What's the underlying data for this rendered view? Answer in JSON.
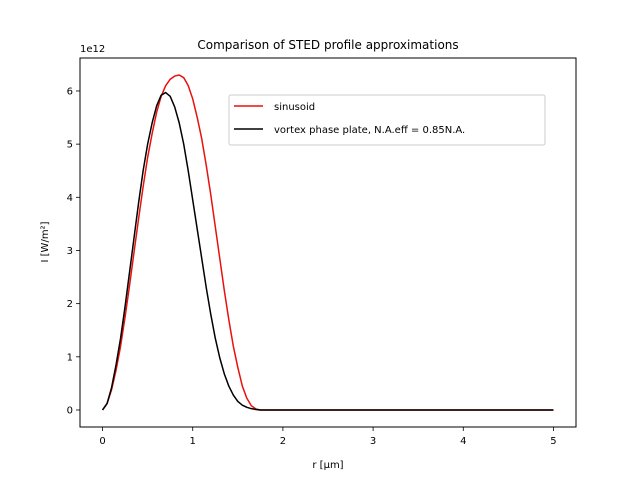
{
  "chart_data": {
    "type": "line",
    "title": "Comparison of STED profile approximations",
    "xlabel": "r [μm]",
    "ylabel": "I [W/m²]",
    "y_offset_text": "1e12",
    "xlim": [
      -0.25,
      5.25
    ],
    "ylim": [
      -0.32,
      6.62
    ],
    "x_ticks": [
      0,
      1,
      2,
      3,
      4,
      5
    ],
    "y_ticks": [
      0,
      1,
      2,
      3,
      4,
      5,
      6
    ],
    "legend_position": "upper-right",
    "series": [
      {
        "name": "sinusoid",
        "color": "#e8110c",
        "x": [
          0,
          0.05,
          0.1,
          0.15,
          0.2,
          0.25,
          0.3,
          0.35,
          0.4,
          0.45,
          0.5,
          0.55,
          0.6,
          0.65,
          0.7,
          0.75,
          0.8,
          0.85,
          0.9,
          0.95,
          1.0,
          1.05,
          1.1,
          1.15,
          1.2,
          1.25,
          1.3,
          1.35,
          1.4,
          1.45,
          1.5,
          1.55,
          1.6,
          1.65,
          1.7,
          1.75,
          1.8,
          2.0,
          2.5,
          3.0,
          3.5,
          4.0,
          4.5,
          5.0
        ],
        "values": [
          0,
          0.12,
          0.38,
          0.75,
          1.2,
          1.75,
          2.35,
          2.98,
          3.6,
          4.2,
          4.75,
          5.2,
          5.6,
          5.9,
          6.1,
          6.22,
          6.28,
          6.3,
          6.25,
          6.1,
          5.85,
          5.5,
          5.1,
          4.6,
          4.05,
          3.45,
          2.85,
          2.25,
          1.7,
          1.2,
          0.8,
          0.45,
          0.22,
          0.08,
          0.02,
          0.0,
          0.0,
          0.0,
          0.0,
          0.0,
          0.0,
          0.0,
          0.0,
          0.0
        ]
      },
      {
        "name": "vortex phase plate, N.A.eff = 0.85N.A.",
        "color": "#000000",
        "x": [
          0,
          0.05,
          0.1,
          0.15,
          0.2,
          0.25,
          0.3,
          0.35,
          0.4,
          0.45,
          0.5,
          0.55,
          0.6,
          0.65,
          0.7,
          0.75,
          0.8,
          0.85,
          0.9,
          0.95,
          1.0,
          1.05,
          1.1,
          1.15,
          1.2,
          1.25,
          1.3,
          1.35,
          1.4,
          1.45,
          1.5,
          1.55,
          1.6,
          1.65,
          1.7,
          1.75,
          1.8,
          1.85,
          1.9,
          1.95,
          2.0,
          2.1,
          2.2,
          2.3,
          2.4,
          2.5,
          2.6,
          2.7,
          2.8,
          2.9,
          3.0,
          3.1,
          3.2,
          3.3,
          3.4,
          3.5,
          3.6,
          3.7,
          3.8,
          3.9,
          4.0,
          4.1,
          4.2,
          4.3,
          4.4,
          4.5,
          4.6,
          4.7,
          4.8,
          4.9,
          5.0
        ],
        "values": [
          0,
          0.12,
          0.42,
          0.85,
          1.35,
          1.95,
          2.6,
          3.25,
          3.9,
          4.5,
          5.0,
          5.4,
          5.72,
          5.92,
          5.97,
          5.9,
          5.7,
          5.4,
          5.0,
          4.5,
          3.95,
          3.4,
          2.85,
          2.3,
          1.8,
          1.35,
          0.98,
          0.68,
          0.45,
          0.28,
          0.16,
          0.09,
          0.05,
          0.025,
          0.01,
          0.0,
          0.0,
          0.0,
          0.0,
          0.0,
          0.0,
          0.0,
          0.0,
          0.0,
          0.0,
          0.0,
          0.0,
          0.0,
          0.0,
          0.0,
          0.0,
          0.0,
          0.0,
          0.0,
          0.0,
          0.0,
          0.0,
          0.0,
          0.0,
          0.0,
          0.0,
          0.0,
          0.0,
          0.0,
          0.0,
          0.0,
          0.0,
          0.0,
          0.0,
          0.0,
          0.0
        ]
      }
    ]
  }
}
